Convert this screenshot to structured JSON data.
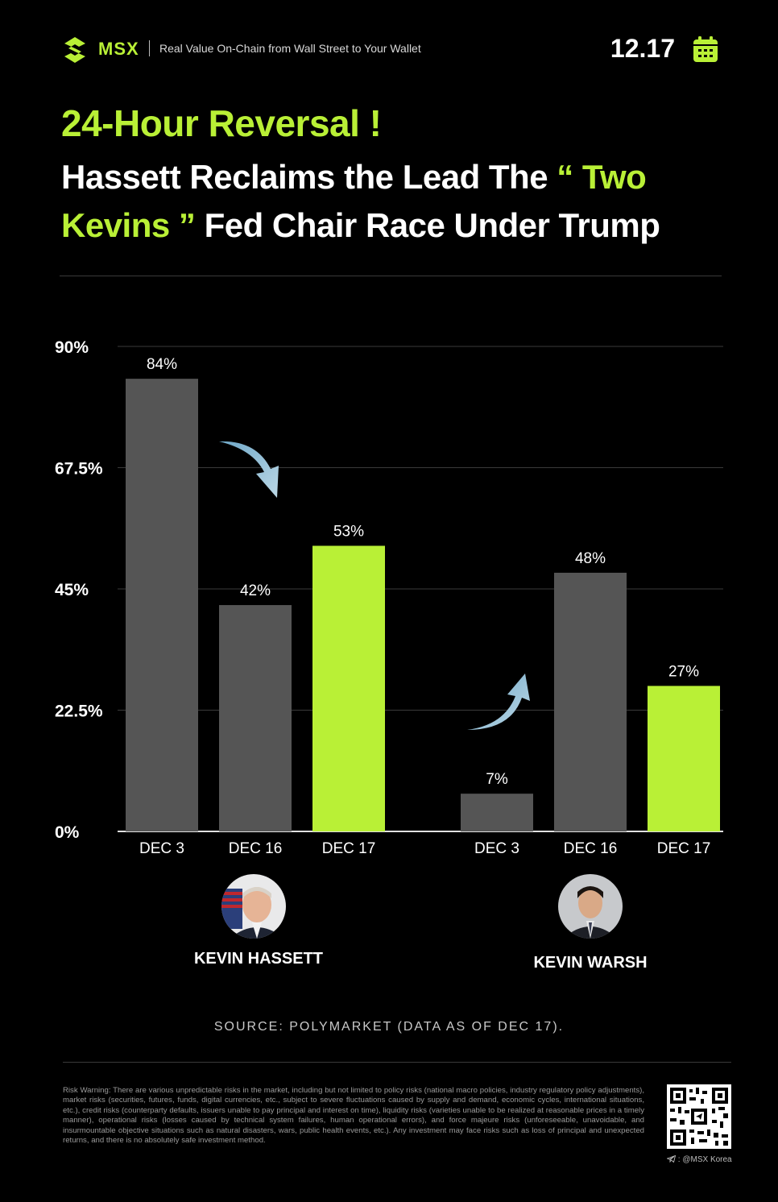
{
  "header": {
    "brand": "MSX",
    "tagline": "Real Value On-Chain from Wall Street to Your Wallet",
    "date": "12.17",
    "logo_icon": "msx-logo-icon",
    "calendar_icon": "calendar-icon",
    "accent_color": "#b9f036"
  },
  "title": {
    "line1": "24-Hour Reversal !",
    "line2_part1": "Hassett Reclaims the Lead The ",
    "line2_quote_open": "“ Two Kevins ”",
    "line2_part2": " Fed Chair Race Under Trump"
  },
  "chart_data": {
    "type": "bar",
    "title": "",
    "xlabel": "",
    "ylabel": "",
    "ylim": [
      0,
      90
    ],
    "yticks": [
      "0%",
      "22.5%",
      "45%",
      "67.5%",
      "90%"
    ],
    "ytick_values": [
      0,
      22.5,
      45,
      67.5,
      90
    ],
    "grid": true,
    "groups": [
      {
        "name": "KEVIN HASSETT",
        "categories": [
          "DEC 3",
          "DEC 16",
          "DEC 17"
        ],
        "values": [
          84,
          42,
          53
        ],
        "labels": [
          "84%",
          "42%",
          "53%"
        ],
        "colors": [
          "#555555",
          "#555555",
          "#b9f036"
        ],
        "trend": "down"
      },
      {
        "name": "KEVIN WARSH",
        "categories": [
          "DEC 3",
          "DEC 16",
          "DEC 17"
        ],
        "values": [
          7,
          48,
          27
        ],
        "labels": [
          "7%",
          "48%",
          "27%"
        ],
        "colors": [
          "#555555",
          "#555555",
          "#b9f036"
        ],
        "trend": "up"
      }
    ]
  },
  "people": {
    "hassett": {
      "name": "KEVIN HASSETT",
      "icon": "hassett-avatar-icon"
    },
    "warsh": {
      "name": "KEVIN WARSH",
      "icon": "warsh-avatar-icon"
    }
  },
  "source": "SOURCE: POLYMARKET (DATA AS OF DEC 17).",
  "footer": {
    "risk_warning": "Risk Warning: There are various unpredictable risks in the market, including but not limited to policy risks (national macro policies, industry regulatory policy adjustments), market risks (securities, futures, funds, digital currencies, etc., subject to severe fluctuations caused by supply and demand, economic cycles, international situations, etc.), credit risks (counterparty defaults, issuers unable to pay principal and interest on time), liquidity risks (varieties unable to be realized at reasonable prices in a timely manner), operational risks (losses caused by technical system failures, human operational errors), and force majeure risks (unforeseeable, unavoidable, and insurmountable objective situations such as natural disasters, wars, public health events, etc.). Any investment may face risks such as loss of principal and unexpected returns, and there is no absolutely safe investment method.",
    "handle": ": @MSX Korea",
    "qr_icon": "qr-code-icon",
    "telegram_icon": "telegram-icon"
  }
}
